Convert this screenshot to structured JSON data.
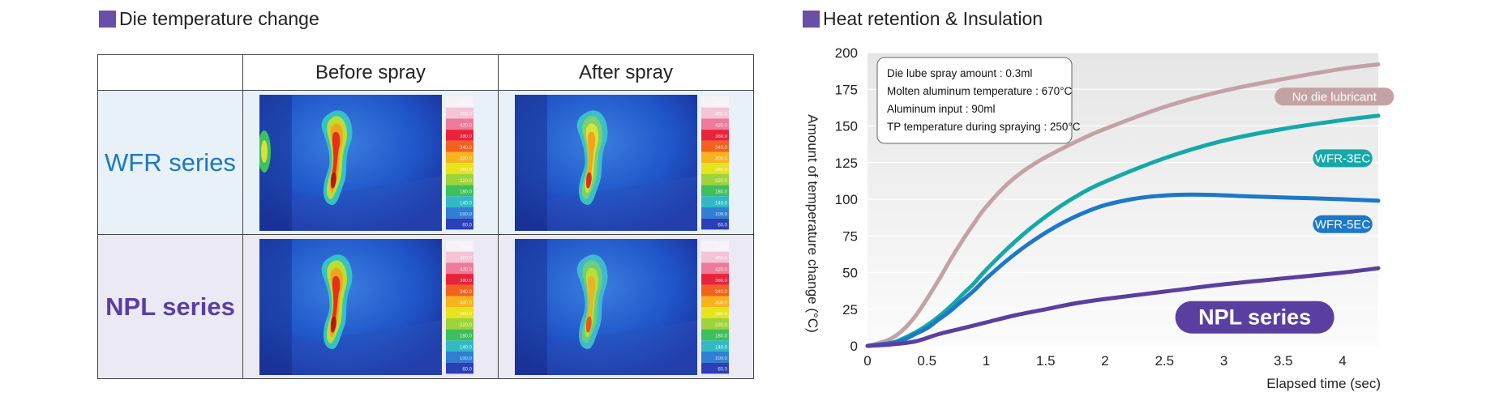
{
  "left_panel": {
    "title": "Die temperature change",
    "title_square_color": "#6a4fa8",
    "columns": [
      "",
      "Before spray",
      "After spray"
    ],
    "rows": [
      {
        "label": "WFR series",
        "color": "#1c78c0",
        "bg": "#e8f0f8"
      },
      {
        "label": "NPL series",
        "color": "#5a3fa0",
        "bg": "#ebe9f4"
      }
    ],
    "scale_labels": [
      "500.0",
      "460.0",
      "420.0",
      "380.0",
      "340.0",
      "300.0",
      "260.0",
      "220.0",
      "180.0",
      "140.0",
      "100.0",
      "60.0"
    ]
  },
  "right_panel": {
    "title": "Heat retention & Insulation",
    "title_square_color": "#6a4fa8",
    "info_box": [
      "Die lube spray amount : 0.3ml",
      "Molten aluminum temperature : 670°C",
      "Aluminum input : 90ml",
      "TP temperature during spraying : 250°C"
    ],
    "npl_badge": "NPL series"
  },
  "chart_data": {
    "type": "line",
    "xlabel": "Elapsed time (sec)",
    "ylabel": "Amount of temperature change (°C)",
    "xlim": [
      0,
      4.3
    ],
    "ylim": [
      0,
      200
    ],
    "xticks": [
      "0",
      "0.5",
      "1",
      "1.5",
      "2",
      "2.5",
      "3",
      "3.5",
      "4"
    ],
    "yticks": [
      "0",
      "25",
      "50",
      "75",
      "100",
      "125",
      "150",
      "175",
      "200"
    ],
    "grid": true,
    "series": [
      {
        "name": "No die lubricant",
        "color": "#c4a2a4",
        "x": [
          0,
          0.1,
          0.2,
          0.3,
          0.4,
          0.5,
          0.6,
          0.7,
          0.8,
          0.9,
          1.0,
          1.2,
          1.4,
          1.6,
          1.8,
          2.0,
          2.5,
          3.0,
          3.5,
          4.0,
          4.3
        ],
        "y": [
          0,
          2,
          5,
          11,
          20,
          32,
          45,
          59,
          72,
          84,
          95,
          112,
          124,
          133,
          141,
          148,
          163,
          174,
          182,
          189,
          192
        ]
      },
      {
        "name": "WFR-3EC",
        "color": "#16a8a8",
        "x": [
          0,
          0.2,
          0.3,
          0.4,
          0.5,
          0.6,
          0.7,
          0.8,
          0.9,
          1.0,
          1.2,
          1.4,
          1.6,
          1.8,
          2.0,
          2.5,
          3.0,
          3.5,
          4.0,
          4.3
        ],
        "y": [
          0,
          2,
          5,
          9,
          14,
          20,
          27,
          35,
          43,
          52,
          68,
          82,
          94,
          104,
          112,
          128,
          140,
          148,
          154,
          157
        ]
      },
      {
        "name": "WFR-5EC",
        "color": "#1c78c8",
        "x": [
          0,
          0.2,
          0.3,
          0.4,
          0.5,
          0.6,
          0.7,
          0.8,
          0.9,
          1.0,
          1.2,
          1.4,
          1.6,
          1.8,
          2.0,
          2.3,
          2.6,
          2.9,
          3.2,
          3.6,
          4.0,
          4.3
        ],
        "y": [
          0,
          2,
          4,
          8,
          12,
          18,
          24,
          31,
          38,
          46,
          60,
          72,
          82,
          90,
          96,
          101,
          103,
          103,
          102,
          101,
          100,
          99
        ]
      },
      {
        "name": "NPL series",
        "color": "#5a3fa0",
        "x": [
          0,
          0.2,
          0.4,
          0.6,
          0.8,
          1.0,
          1.25,
          1.5,
          1.75,
          2.0,
          2.5,
          3.0,
          3.5,
          4.0,
          4.3
        ],
        "y": [
          0,
          1,
          3,
          8,
          12,
          16,
          21,
          25,
          29,
          32,
          37,
          42,
          46,
          50,
          53
        ]
      }
    ],
    "series_labels": [
      {
        "text": "No die lubricant",
        "color": "#c4a2a4",
        "x": 3.93,
        "y": 170
      },
      {
        "text": "WFR-3EC",
        "color": "#16a8a8",
        "x": 4.0,
        "y": 128
      },
      {
        "text": "WFR-5EC",
        "color": "#1c78c8",
        "x": 4.0,
        "y": 83
      }
    ]
  }
}
